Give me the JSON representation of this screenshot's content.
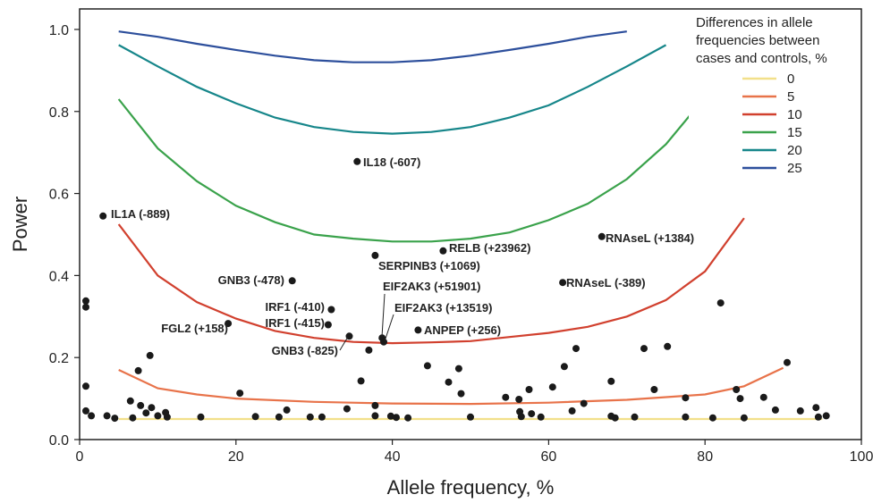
{
  "chart_data": {
    "type": "scatter",
    "xlabel": "Allele frequency, %",
    "ylabel": "Power",
    "xlim": [
      0,
      100
    ],
    "ylim": [
      0,
      1.05
    ],
    "x_ticks": [
      0,
      20,
      40,
      60,
      80,
      100
    ],
    "y_ticks": [
      0.0,
      0.2,
      0.4,
      0.6,
      0.8,
      1.0
    ],
    "grid": false,
    "legend": {
      "position": "top-right",
      "title_lines": [
        "Differences in allele",
        "frequencies between",
        "cases and controls, %"
      ],
      "entries": [
        {
          "label": "0",
          "color": "#f2e08a"
        },
        {
          "label": "5",
          "color": "#e8734a"
        },
        {
          "label": "10",
          "color": "#d1402e"
        },
        {
          "label": "15",
          "color": "#3aa24b"
        },
        {
          "label": "20",
          "color": "#16868a"
        },
        {
          "label": "25",
          "color": "#2d4f9c"
        }
      ]
    },
    "curves": [
      {
        "name": "0",
        "color": "#f2e08a",
        "points": [
          [
            5,
            0.05
          ],
          [
            95,
            0.05
          ]
        ]
      },
      {
        "name": "5",
        "color": "#e8734a",
        "points": [
          [
            5,
            0.17
          ],
          [
            10,
            0.125
          ],
          [
            15,
            0.11
          ],
          [
            20,
            0.1
          ],
          [
            30,
            0.092
          ],
          [
            40,
            0.088
          ],
          [
            50,
            0.087
          ],
          [
            60,
            0.09
          ],
          [
            70,
            0.097
          ],
          [
            80,
            0.11
          ],
          [
            85,
            0.13
          ],
          [
            90,
            0.175
          ]
        ]
      },
      {
        "name": "10",
        "color": "#d1402e",
        "points": [
          [
            5,
            0.525
          ],
          [
            10,
            0.4
          ],
          [
            15,
            0.335
          ],
          [
            20,
            0.295
          ],
          [
            25,
            0.265
          ],
          [
            30,
            0.248
          ],
          [
            35,
            0.238
          ],
          [
            40,
            0.235
          ],
          [
            45,
            0.237
          ],
          [
            50,
            0.24
          ],
          [
            55,
            0.25
          ],
          [
            60,
            0.26
          ],
          [
            65,
            0.275
          ],
          [
            70,
            0.3
          ],
          [
            75,
            0.34
          ],
          [
            80,
            0.41
          ],
          [
            85,
            0.54
          ]
        ]
      },
      {
        "name": "15",
        "color": "#3aa24b",
        "points": [
          [
            5,
            0.83
          ],
          [
            10,
            0.71
          ],
          [
            15,
            0.63
          ],
          [
            20,
            0.57
          ],
          [
            25,
            0.53
          ],
          [
            30,
            0.5
          ],
          [
            35,
            0.49
          ],
          [
            40,
            0.483
          ],
          [
            45,
            0.483
          ],
          [
            50,
            0.49
          ],
          [
            55,
            0.505
          ],
          [
            60,
            0.535
          ],
          [
            65,
            0.575
          ],
          [
            70,
            0.635
          ],
          [
            75,
            0.72
          ],
          [
            80,
            0.835
          ]
        ]
      },
      {
        "name": "20",
        "color": "#16868a",
        "points": [
          [
            5,
            0.962
          ],
          [
            10,
            0.91
          ],
          [
            15,
            0.86
          ],
          [
            20,
            0.82
          ],
          [
            25,
            0.785
          ],
          [
            30,
            0.762
          ],
          [
            35,
            0.75
          ],
          [
            40,
            0.746
          ],
          [
            45,
            0.75
          ],
          [
            50,
            0.762
          ],
          [
            55,
            0.785
          ],
          [
            60,
            0.815
          ],
          [
            65,
            0.86
          ],
          [
            70,
            0.91
          ],
          [
            75,
            0.962
          ]
        ]
      },
      {
        "name": "25",
        "color": "#2d4f9c",
        "points": [
          [
            5,
            0.995
          ],
          [
            10,
            0.982
          ],
          [
            15,
            0.965
          ],
          [
            20,
            0.95
          ],
          [
            25,
            0.936
          ],
          [
            30,
            0.925
          ],
          [
            35,
            0.92
          ],
          [
            40,
            0.92
          ],
          [
            45,
            0.925
          ],
          [
            50,
            0.936
          ],
          [
            55,
            0.95
          ],
          [
            60,
            0.965
          ],
          [
            65,
            0.982
          ],
          [
            70,
            0.995
          ]
        ]
      }
    ],
    "labeled_points": [
      {
        "label": "IL1A (-889)",
        "x": 3,
        "y": 0.545
      },
      {
        "label": "IL18 (-607)",
        "x": 35.5,
        "y": 0.678
      },
      {
        "label": "RELB (+23962)",
        "x": 46.5,
        "y": 0.46
      },
      {
        "label": "SERPINB3 (+1069)",
        "x": 37.8,
        "y": 0.449
      },
      {
        "label": "RNAseL (+1384)",
        "x": 66.8,
        "y": 0.495
      },
      {
        "label": "RNAseL (-389)",
        "x": 61.8,
        "y": 0.383
      },
      {
        "label": "GNB3 (-478)",
        "x": 27.2,
        "y": 0.387
      },
      {
        "label": "IRF1 (-410)",
        "x": 32.2,
        "y": 0.317
      },
      {
        "label": "IRF1 (-415)",
        "x": 31.8,
        "y": 0.28
      },
      {
        "label": "FGL2 (+158)",
        "x": 19,
        "y": 0.283
      },
      {
        "label": "GNB3 (-825)",
        "x": 34.5,
        "y": 0.252
      },
      {
        "label": "EIF2AK3 (+51901)",
        "x": 38.7,
        "y": 0.248
      },
      {
        "label": "EIF2AK3 (+13519)",
        "x": 38.9,
        "y": 0.238
      },
      {
        "label": "ANPEP (+256)",
        "x": 43.3,
        "y": 0.267
      }
    ],
    "points": [
      [
        0.8,
        0.338
      ],
      [
        0.8,
        0.323
      ],
      [
        0.8,
        0.13
      ],
      [
        0.8,
        0.07
      ],
      [
        1.5,
        0.058
      ],
      [
        3.5,
        0.058
      ],
      [
        4.5,
        0.052
      ],
      [
        6.5,
        0.094
      ],
      [
        6.8,
        0.053
      ],
      [
        7.5,
        0.168
      ],
      [
        7.8,
        0.083
      ],
      [
        8.5,
        0.065
      ],
      [
        9,
        0.205
      ],
      [
        9.2,
        0.078
      ],
      [
        10,
        0.058
      ],
      [
        11,
        0.066
      ],
      [
        11.2,
        0.055
      ],
      [
        15.5,
        0.055
      ],
      [
        20.5,
        0.113
      ],
      [
        22.5,
        0.056
      ],
      [
        25.5,
        0.055
      ],
      [
        26.5,
        0.072
      ],
      [
        29.5,
        0.055
      ],
      [
        31,
        0.055
      ],
      [
        34.2,
        0.075
      ],
      [
        36,
        0.143
      ],
      [
        37,
        0.218
      ],
      [
        37.8,
        0.083
      ],
      [
        37.8,
        0.058
      ],
      [
        39.8,
        0.057
      ],
      [
        40.5,
        0.054
      ],
      [
        42,
        0.053
      ],
      [
        44.5,
        0.18
      ],
      [
        47.2,
        0.14
      ],
      [
        48.5,
        0.173
      ],
      [
        48.8,
        0.112
      ],
      [
        50,
        0.055
      ],
      [
        54.5,
        0.103
      ],
      [
        56.2,
        0.098
      ],
      [
        56.3,
        0.068
      ],
      [
        56.5,
        0.056
      ],
      [
        57.5,
        0.122
      ],
      [
        57.8,
        0.063
      ],
      [
        59,
        0.055
      ],
      [
        60.5,
        0.128
      ],
      [
        62,
        0.178
      ],
      [
        63,
        0.07
      ],
      [
        63.5,
        0.222
      ],
      [
        64.5,
        0.088
      ],
      [
        68,
        0.142
      ],
      [
        68,
        0.057
      ],
      [
        68.5,
        0.053
      ],
      [
        71,
        0.055
      ],
      [
        72.2,
        0.222
      ],
      [
        73.5,
        0.122
      ],
      [
        75.2,
        0.227
      ],
      [
        77.5,
        0.102
      ],
      [
        77.5,
        0.055
      ],
      [
        81,
        0.053
      ],
      [
        82,
        0.333
      ],
      [
        84,
        0.122
      ],
      [
        84.5,
        0.1
      ],
      [
        85,
        0.053
      ],
      [
        87.5,
        0.103
      ],
      [
        89,
        0.072
      ],
      [
        90.5,
        0.188
      ],
      [
        92.2,
        0.07
      ],
      [
        94.2,
        0.078
      ],
      [
        94.5,
        0.055
      ],
      [
        95.5,
        0.058
      ]
    ]
  }
}
